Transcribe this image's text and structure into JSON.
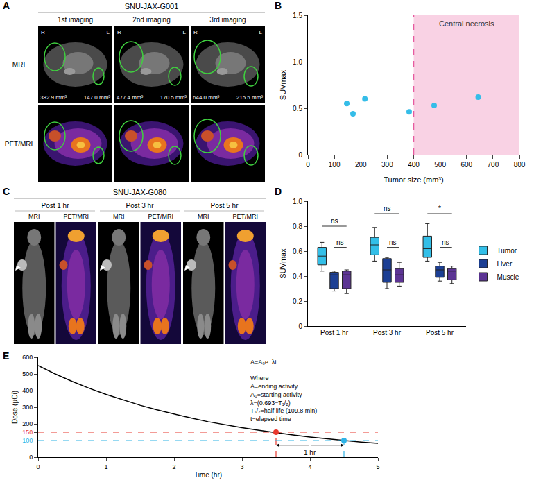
{
  "image_panels": [
    {
      "panel": "A",
      "title": "SNU-JAX-G001",
      "columns": [
        "1st imaging",
        "2nd imaging",
        "3rd imaging"
      ],
      "rows": [
        "MRI",
        "PET/MRI"
      ],
      "orientation_labels": [
        "R",
        "L"
      ],
      "tumor_volumes": [
        [
          "382.9 mm³",
          "147.0 mm³"
        ],
        [
          "477.4 mm³",
          "170.5 mm³"
        ],
        [
          "644.0 mm³",
          "215.5 mm³"
        ]
      ]
    },
    {
      "panel": "C",
      "title": "SNU-JAX-G080",
      "columns": [
        "Post 1 hr",
        "Post 3 hr",
        "Post 5 hr"
      ],
      "subcolumns": [
        "MRI",
        "PET/MRI"
      ]
    }
  ],
  "chart_data": [
    {
      "panel": "B",
      "type": "scatter",
      "x": [
        147.0,
        170.5,
        215.5,
        382.9,
        477.4,
        644.0
      ],
      "values": [
        0.55,
        0.44,
        0.6,
        0.46,
        0.53,
        0.62
      ],
      "color": "#35bde8",
      "x_label": "Tumor size (mm³)",
      "y_label": "SUVmax",
      "xlim": [
        0,
        800
      ],
      "xticks": [
        0,
        100,
        200,
        300,
        400,
        500,
        600,
        700,
        800
      ],
      "ylim": [
        0,
        1.5
      ],
      "yticks": [
        0,
        0.5,
        {
          "value": 1,
          "label": "1.0"
        },
        1.5
      ],
      "grid": false,
      "region": {
        "from": 400,
        "to": 800,
        "label": "Central necrosis",
        "color": "#f9d2e4",
        "line_color": "#e75a9e"
      }
    },
    {
      "panel": "D",
      "type": "box",
      "categories": [
        "Post 1 hr",
        "Post 3 hr",
        "Post 5 hr"
      ],
      "series": [
        {
          "name": "Tumor",
          "color": "#33bfe8",
          "min": [
            0.44,
            0.52,
            0.52
          ],
          "q1": [
            0.49,
            0.57,
            0.55
          ],
          "median": [
            0.56,
            0.65,
            0.62
          ],
          "q3": [
            0.63,
            0.71,
            0.72
          ],
          "max": [
            0.67,
            0.79,
            0.82
          ]
        },
        {
          "name": "Liver",
          "color": "#1c3f94",
          "min": [
            0.28,
            0.3,
            0.36
          ],
          "q1": [
            0.3,
            0.35,
            0.39
          ],
          "median": [
            0.41,
            0.45,
            0.45
          ],
          "q3": [
            0.43,
            0.54,
            0.48
          ],
          "max": [
            0.44,
            0.55,
            0.51
          ]
        },
        {
          "name": "Muscle",
          "color": "#5c3494",
          "min": [
            0.26,
            0.32,
            0.34
          ],
          "q1": [
            0.3,
            0.35,
            0.37
          ],
          "median": [
            0.41,
            0.41,
            0.44
          ],
          "q3": [
            0.44,
            0.46,
            0.46
          ],
          "max": [
            0.45,
            0.51,
            0.48
          ]
        }
      ],
      "y_label": "SUVmax",
      "ylim": [
        0,
        1
      ],
      "yticks": [
        0,
        0.2,
        0.4,
        0.6,
        0.8,
        {
          "value": 1,
          "label": "1.0"
        }
      ],
      "grid": false,
      "legend": "right",
      "comparisons": [
        {
          "category": "Post 1 hr",
          "from": "Tumor",
          "to": "Muscle",
          "y": 0.8,
          "label": "ns"
        },
        {
          "category": "Post 1 hr",
          "from": "Liver",
          "to": "Muscle",
          "y": 0.63,
          "label": "ns"
        },
        {
          "category": "Post 3 hr",
          "from": "Tumor",
          "to": "Muscle",
          "y": 0.9,
          "label": "ns"
        },
        {
          "category": "Post 3 hr",
          "from": "Liver",
          "to": "Muscle",
          "y": 0.63,
          "label": "ns"
        },
        {
          "category": "Post 5 hr",
          "from": "Tumor",
          "to": "Muscle",
          "y": 0.9,
          "label": "*"
        },
        {
          "category": "Post 5 hr",
          "from": "Liver",
          "to": "Muscle",
          "y": 0.63,
          "label": "ns"
        }
      ]
    },
    {
      "panel": "E",
      "type": "line",
      "x": [
        0,
        0.25,
        0.5,
        0.75,
        1,
        1.25,
        1.5,
        1.75,
        2,
        2.25,
        2.5,
        2.75,
        3,
        3.25,
        3.5,
        3.75,
        4,
        4.25,
        4.5,
        4.75,
        5
      ],
      "values": [
        550,
        500,
        455,
        414,
        377,
        343,
        312,
        284,
        258,
        235,
        213,
        194,
        177,
        161,
        146,
        133,
        121,
        110,
        100,
        91,
        83
      ],
      "color": "#000000",
      "x_label": "Time (hr)",
      "y_label": "Dose (μCi)",
      "xlim": [
        0,
        5
      ],
      "xticks": [
        0,
        1,
        2,
        3,
        4,
        5
      ],
      "ylim": [
        0,
        600
      ],
      "yticks": [
        0,
        100,
        150,
        200,
        300,
        400,
        500,
        600
      ],
      "grid": false,
      "reference_points": [
        {
          "x": 3.5,
          "y": 150,
          "color": "#e8392f"
        },
        {
          "x": 4.5,
          "y": 100,
          "color": "#2fb3e6"
        }
      ],
      "interval": {
        "from": 3.5,
        "to": 4.5,
        "label": "1 hr"
      },
      "formula": [
        "A=A₀e⁻λt",
        "",
        "Where",
        "A=ending activity",
        "A₀=starting activity",
        "λ=(0.693÷T₁/₂)",
        "T₁/₂=half life (109.8 min)",
        "t=elapsed time"
      ]
    }
  ]
}
